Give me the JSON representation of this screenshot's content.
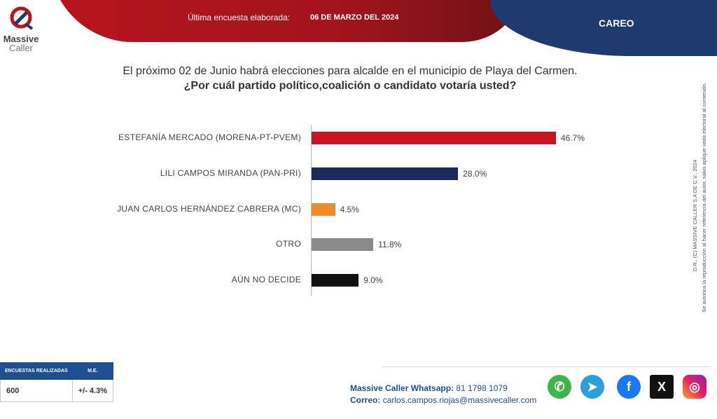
{
  "header": {
    "brand": "Massive Caller",
    "brand_line1": "Massive",
    "brand_line2": "Caller",
    "last_survey_label": "Última encuesta elaborada:",
    "last_survey_date": "06 DE MARZO DEL 2024",
    "section": "CAREO"
  },
  "question": {
    "line1": "El próximo 02 de Junio habrá elecciones para alcalde en el municipio de  Playa del Carmen.",
    "line2": "¿Por cuál partido político,coalición  o candidato votaría usted?"
  },
  "chart_data": {
    "type": "bar",
    "orientation": "horizontal",
    "categories": [
      "ESTEFANÍA MERCADO (MORENA-PT-PVEM)",
      "LILI CAMPOS MIRANDA (PAN-PRI)",
      "JUAN CARLOS HERNÁNDEZ CABRERA (MC)",
      "OTRO",
      "AÚN NO DECIDE"
    ],
    "values": [
      46.7,
      28.0,
      4.5,
      11.8,
      9.0
    ],
    "labels": [
      "46.7%",
      "28.0%",
      "4.5%",
      "11.8%",
      "9.0%"
    ],
    "colors": [
      "#c8141e",
      "#1b2a5c",
      "#ee8a2a",
      "#8a8a8a",
      "#111111"
    ],
    "xlim": [
      0,
      55
    ],
    "grid": false
  },
  "sample": {
    "headers": [
      "ENCUESTAS REALIZADAS",
      "M.E."
    ],
    "values": [
      "600",
      "+/- 4.3%"
    ]
  },
  "contact": {
    "whatsapp_label": "Massive Caller Whatsapp:",
    "whatsapp": "81 1798 1079",
    "email_label": "Correo:",
    "email": "carlos.campos.riojas@massivecaller.com"
  },
  "social": [
    "whatsapp-icon",
    "telegram-icon",
    "facebook-icon",
    "x-icon",
    "instagram-icon"
  ],
  "legal": {
    "line1": "D.R., (C) MASSIVE CALLER S.A DE C.V., 2024",
    "line2": "Se autoriza la reproducción al hacer referencia del autor, salvo aplique veda electoral al contenido."
  }
}
